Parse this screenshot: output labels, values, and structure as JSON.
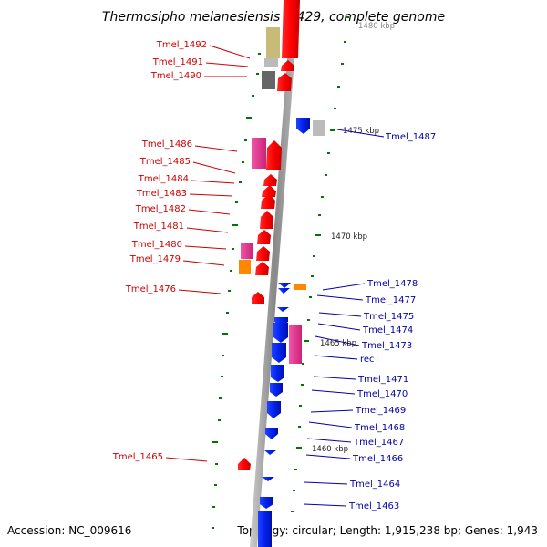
{
  "title": "Thermosipho melanesiensis BI429, complete genome",
  "accession": "Accession: NC_009616",
  "topology": "Topology: circular; Length: 1,915,238 bp; Genes: 1,943",
  "colors": {
    "forward_label": "#cc0000",
    "reverse_label": "#0000aa",
    "gene_red": "#ff0000",
    "gene_blue": "#0022ee",
    "gene_magenta": "#ee3399",
    "gene_orange": "#ff8800",
    "gene_khaki": "#c8bb77",
    "gene_grey": "#bbbbbb",
    "gene_dark": "#666666",
    "backbone": "#999999",
    "tick_green": "#007700"
  },
  "kbp_labels": {
    "k1480": "1480 kbp",
    "k1475": "1475 kbp",
    "k1470": "1470 kbp",
    "k1465": "1465 kbp",
    "k1460": "1460 kbp"
  },
  "forward_genes": {
    "g1492": "Tmel_1492",
    "g1491": "Tmel_1491",
    "g1490": "Tmel_1490",
    "g1486": "Tmel_1486",
    "g1485": "Tmel_1485",
    "g1484": "Tmel_1484",
    "g1483": "Tmel_1483",
    "g1482": "Tmel_1482",
    "g1481": "Tmel_1481",
    "g1480": "Tmel_1480",
    "g1479": "Tmel_1479",
    "g1476": "Tmel_1476",
    "g1465": "Tmel_1465"
  },
  "reverse_genes": {
    "g1487": "Tmel_1487",
    "g1478": "Tmel_1478",
    "g1477": "Tmel_1477",
    "g1475": "Tmel_1475",
    "g1474": "Tmel_1474",
    "g1473": "Tmel_1473",
    "recT": "recT",
    "g1471": "Tmel_1471",
    "g1470": "Tmel_1470",
    "g1469": "Tmel_1469",
    "g1468": "Tmel_1468",
    "g1467": "Tmel_1467",
    "g1466": "Tmel_1466",
    "g1464": "Tmel_1464",
    "g1463": "Tmel_1463"
  }
}
